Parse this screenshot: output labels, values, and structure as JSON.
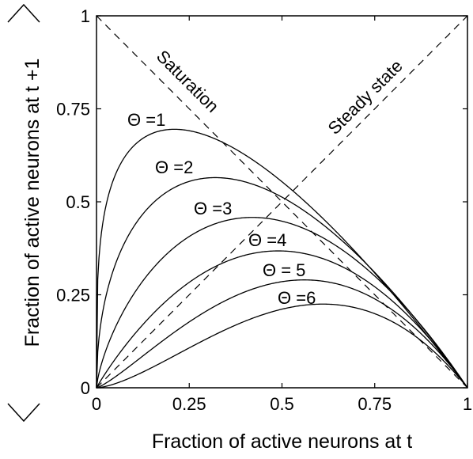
{
  "chart_data": {
    "type": "line",
    "xlabel": "Fraction of active neurons at t",
    "ylabel": "Fraction of active neurons at t +1",
    "xlim": [
      0,
      1
    ],
    "ylim": [
      0,
      1
    ],
    "xticks": [
      {
        "value": 0,
        "label": "0"
      },
      {
        "value": 0.25,
        "label": "0.25"
      },
      {
        "value": 0.5,
        "label": "0.5"
      },
      {
        "value": 0.75,
        "label": "0.75"
      },
      {
        "value": 1,
        "label": "1"
      }
    ],
    "yticks": [
      {
        "value": 0,
        "label": "0"
      },
      {
        "value": 0.25,
        "label": "0.25"
      },
      {
        "value": 0.5,
        "label": "0.5"
      },
      {
        "value": 0.75,
        "label": "0.75"
      },
      {
        "value": 1,
        "label": "1"
      }
    ],
    "grid": false,
    "series": [
      {
        "name": "Θ =1",
        "theta": 1,
        "peak_x": 0.21,
        "peak_y": 0.695
      },
      {
        "name": "Θ =2",
        "theta": 2,
        "peak_x": 0.32,
        "peak_y": 0.565
      },
      {
        "name": "Θ =3",
        "theta": 3,
        "peak_x": 0.42,
        "peak_y": 0.458
      },
      {
        "name": "Θ =4",
        "theta": 4,
        "peak_x": 0.49,
        "peak_y": 0.368
      },
      {
        "name": "Θ = 5",
        "theta": 5,
        "peak_x": 0.56,
        "peak_y": 0.29
      },
      {
        "name": "Θ =6",
        "theta": 6,
        "peak_x": 0.61,
        "peak_y": 0.225
      }
    ],
    "reference_lines": [
      {
        "name": "Saturation",
        "from": [
          0,
          1
        ],
        "to": [
          1,
          0
        ]
      },
      {
        "name": "Steady state",
        "from": [
          0,
          0
        ],
        "to": [
          1,
          1
        ]
      }
    ]
  }
}
